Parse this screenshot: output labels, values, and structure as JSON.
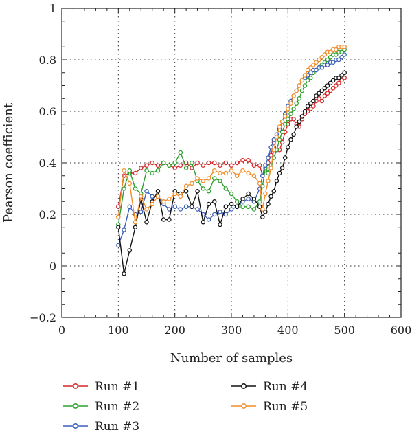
{
  "chart_data": {
    "type": "line",
    "title": "",
    "xlabel": "Number of samples",
    "ylabel": "Pearson coefficient",
    "xlim": [
      0,
      600
    ],
    "ylim": [
      -0.2,
      1
    ],
    "xticks": [
      0,
      100,
      200,
      300,
      400,
      500,
      600
    ],
    "yticks": [
      -0.2,
      0,
      0.2,
      0.4,
      0.6,
      0.8,
      1
    ],
    "ytick_labels": [
      "−0.2",
      "0",
      "0.2",
      "0.4",
      "0.6",
      "0.8",
      "1"
    ],
    "grid": true,
    "legend_position": "bottom",
    "series": [
      {
        "name": "Run #1",
        "color": "#d62728",
        "x": [
          100,
          110,
          120,
          130,
          140,
          150,
          160,
          170,
          180,
          190,
          200,
          210,
          220,
          230,
          240,
          250,
          260,
          270,
          280,
          290,
          300,
          310,
          320,
          330,
          340,
          350,
          355,
          360,
          365,
          370,
          375,
          380,
          385,
          390,
          395,
          400,
          405,
          410,
          415,
          420,
          425,
          430,
          435,
          440,
          445,
          450,
          455,
          460,
          465,
          470,
          475,
          480,
          485,
          490,
          495,
          500
        ],
        "y": [
          0.23,
          0.35,
          0.36,
          0.36,
          0.38,
          0.39,
          0.4,
          0.39,
          0.4,
          0.39,
          0.38,
          0.39,
          0.4,
          0.38,
          0.4,
          0.39,
          0.4,
          0.4,
          0.39,
          0.4,
          0.39,
          0.4,
          0.41,
          0.41,
          0.39,
          0.39,
          0.35,
          0.37,
          0.4,
          0.43,
          0.48,
          0.45,
          0.45,
          0.48,
          0.52,
          0.55,
          0.57,
          0.57,
          0.55,
          0.54,
          0.57,
          0.59,
          0.6,
          0.61,
          0.62,
          0.64,
          0.65,
          0.64,
          0.66,
          0.67,
          0.68,
          0.69,
          0.7,
          0.71,
          0.72,
          0.73
        ]
      },
      {
        "name": "Run #2",
        "color": "#2ca02c",
        "x": [
          100,
          110,
          120,
          130,
          140,
          150,
          160,
          170,
          180,
          190,
          200,
          210,
          220,
          230,
          240,
          250,
          260,
          270,
          280,
          290,
          300,
          310,
          320,
          330,
          340,
          350,
          355,
          360,
          365,
          370,
          375,
          380,
          385,
          390,
          395,
          400,
          405,
          410,
          415,
          420,
          425,
          430,
          435,
          440,
          445,
          450,
          455,
          460,
          465,
          470,
          475,
          480,
          485,
          490,
          495,
          500
        ],
        "y": [
          0.16,
          0.3,
          0.37,
          0.3,
          0.28,
          0.37,
          0.36,
          0.37,
          0.4,
          0.39,
          0.4,
          0.44,
          0.38,
          0.4,
          0.33,
          0.3,
          0.29,
          0.34,
          0.33,
          0.3,
          0.28,
          0.25,
          0.23,
          0.23,
          0.22,
          0.25,
          0.31,
          0.38,
          0.36,
          0.39,
          0.42,
          0.45,
          0.49,
          0.52,
          0.55,
          0.57,
          0.59,
          0.61,
          0.63,
          0.65,
          0.68,
          0.7,
          0.72,
          0.73,
          0.75,
          0.76,
          0.77,
          0.78,
          0.79,
          0.8,
          0.81,
          0.82,
          0.82,
          0.83,
          0.83,
          0.84
        ]
      },
      {
        "name": "Run #3",
        "color": "#3a5fb8",
        "x": [
          100,
          110,
          120,
          130,
          140,
          150,
          160,
          170,
          180,
          190,
          200,
          210,
          220,
          230,
          240,
          250,
          260,
          270,
          280,
          290,
          300,
          310,
          320,
          330,
          340,
          350,
          355,
          360,
          365,
          370,
          375,
          380,
          385,
          390,
          395,
          400,
          405,
          410,
          415,
          420,
          425,
          430,
          435,
          440,
          445,
          450,
          455,
          460,
          465,
          470,
          475,
          480,
          485,
          490,
          495,
          500
        ],
        "y": [
          0.08,
          0.14,
          0.23,
          0.2,
          0.21,
          0.29,
          0.27,
          0.27,
          0.24,
          0.22,
          0.23,
          0.22,
          0.23,
          0.23,
          0.22,
          0.2,
          0.18,
          0.2,
          0.21,
          0.2,
          0.22,
          0.23,
          0.25,
          0.26,
          0.25,
          0.3,
          0.35,
          0.39,
          0.42,
          0.46,
          0.49,
          0.51,
          0.53,
          0.56,
          0.59,
          0.62,
          0.64,
          0.66,
          0.68,
          0.7,
          0.72,
          0.73,
          0.74,
          0.75,
          0.76,
          0.76,
          0.77,
          0.77,
          0.78,
          0.78,
          0.79,
          0.79,
          0.8,
          0.8,
          0.81,
          0.82
        ]
      },
      {
        "name": "Run #4",
        "color": "#111111",
        "x": [
          100,
          110,
          120,
          130,
          140,
          150,
          160,
          170,
          180,
          190,
          200,
          210,
          220,
          230,
          240,
          250,
          260,
          270,
          280,
          290,
          300,
          310,
          320,
          330,
          340,
          350,
          355,
          360,
          365,
          370,
          375,
          380,
          385,
          390,
          395,
          400,
          405,
          410,
          415,
          420,
          425,
          430,
          435,
          440,
          445,
          450,
          455,
          460,
          465,
          470,
          475,
          480,
          485,
          490,
          495,
          500
        ],
        "y": [
          0.15,
          -0.03,
          0.06,
          0.15,
          0.26,
          0.17,
          0.25,
          0.29,
          0.18,
          0.18,
          0.29,
          0.28,
          0.29,
          0.23,
          0.29,
          0.17,
          0.24,
          0.25,
          0.16,
          0.23,
          0.24,
          0.23,
          0.26,
          0.28,
          0.26,
          0.23,
          0.19,
          0.21,
          0.24,
          0.27,
          0.29,
          0.33,
          0.36,
          0.38,
          0.42,
          0.46,
          0.49,
          0.51,
          0.54,
          0.56,
          0.58,
          0.6,
          0.62,
          0.63,
          0.64,
          0.66,
          0.67,
          0.68,
          0.69,
          0.7,
          0.71,
          0.72,
          0.73,
          0.73,
          0.74,
          0.75
        ]
      },
      {
        "name": "Run #5",
        "color": "#f28e2b",
        "x": [
          100,
          110,
          120,
          130,
          140,
          150,
          160,
          170,
          180,
          190,
          200,
          210,
          220,
          230,
          240,
          250,
          260,
          270,
          280,
          290,
          300,
          310,
          320,
          330,
          340,
          350,
          355,
          360,
          365,
          370,
          375,
          380,
          385,
          390,
          395,
          400,
          405,
          410,
          415,
          420,
          425,
          430,
          435,
          440,
          445,
          450,
          455,
          460,
          465,
          470,
          475,
          480,
          485,
          490,
          495,
          500
        ],
        "y": [
          0.19,
          0.37,
          0.32,
          0.17,
          0.27,
          0.22,
          0.24,
          0.27,
          0.25,
          0.26,
          0.28,
          0.27,
          0.31,
          0.32,
          0.34,
          0.33,
          0.34,
          0.37,
          0.36,
          0.36,
          0.37,
          0.35,
          0.37,
          0.36,
          0.35,
          0.32,
          0.22,
          0.28,
          0.33,
          0.38,
          0.45,
          0.5,
          0.54,
          0.56,
          0.58,
          0.61,
          0.63,
          0.66,
          0.68,
          0.7,
          0.72,
          0.74,
          0.76,
          0.77,
          0.78,
          0.79,
          0.8,
          0.81,
          0.82,
          0.83,
          0.83,
          0.84,
          0.84,
          0.85,
          0.85,
          0.85
        ]
      }
    ]
  }
}
